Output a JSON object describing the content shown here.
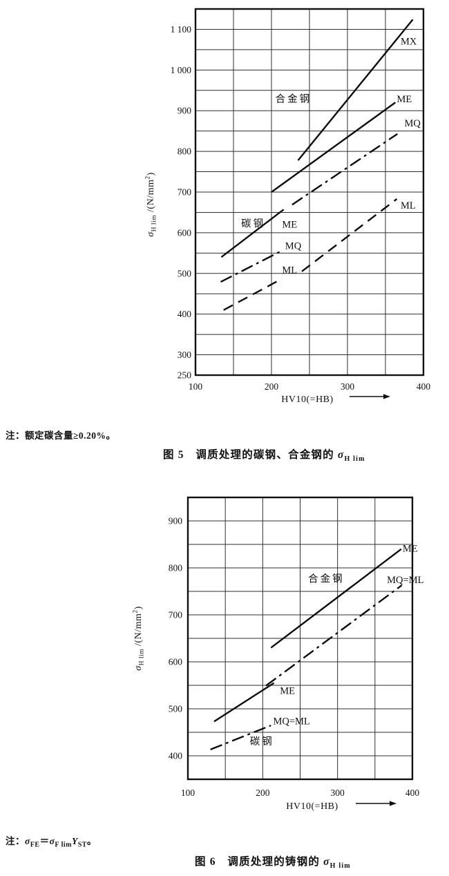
{
  "page": {
    "background": "#ffffff",
    "ink": "#101010"
  },
  "notes": {
    "fig5": [
      {
        "t": "注：额定碳含量≥0.20%。"
      }
    ],
    "fig6": [
      {
        "t": "注："
      },
      {
        "t": "σ",
        "i": 1
      },
      {
        "t": "FE",
        "sub": 1
      },
      {
        "t": "＝"
      },
      {
        "t": "σ",
        "i": 1
      },
      {
        "t": "F lim",
        "sub": 1
      },
      {
        "t": "Y",
        "i": 1
      },
      {
        "t": "ST",
        "sub": 1
      },
      {
        "t": "。"
      }
    ]
  },
  "captions": {
    "fig5": [
      {
        "t": "图 5　调质处理的碳钢、合金钢的 "
      },
      {
        "t": "σ",
        "i": 1
      },
      {
        "t": "H lim",
        "sub": 1
      }
    ],
    "fig6": [
      {
        "t": "图 6　调质处理的铸钢的 "
      },
      {
        "t": "σ",
        "i": 1
      },
      {
        "t": "H lim",
        "sub": 1
      }
    ]
  },
  "chart_data": [
    {
      "id": "fig5",
      "type": "line",
      "title": "图 5 调质处理的碳钢、合金钢的 σH lim",
      "xlabel": "HV10(=HB)",
      "ylabel": "σ H lim /(N/mm2)",
      "ylabel_parts": [
        {
          "t": "σ",
          "i": 1
        },
        {
          "t": "H lim",
          "sub": 1
        },
        {
          "t": " /(N/mm"
        },
        {
          "t": "2",
          "sup": 1
        },
        {
          "t": ")"
        }
      ],
      "xlim": [
        100,
        400
      ],
      "ylim": [
        250,
        1150
      ],
      "grid": "on",
      "grid_step_x": 50,
      "grid_step_y": 50,
      "x_ticks": [
        {
          "v": 100,
          "label": "100"
        },
        {
          "v": 200,
          "label": "200"
        },
        {
          "v": 300,
          "label": "300"
        },
        {
          "v": 400,
          "label": "400"
        }
      ],
      "y_ticks": [
        {
          "v": 1100,
          "label": "1 100"
        },
        {
          "v": 1000,
          "label": "1 000"
        },
        {
          "v": 900,
          "label": "900"
        },
        {
          "v": 800,
          "label": "800"
        },
        {
          "v": 700,
          "label": "700"
        },
        {
          "v": 600,
          "label": "600"
        },
        {
          "v": 500,
          "label": "500"
        },
        {
          "v": 400,
          "label": "400"
        },
        {
          "v": 300,
          "label": "300"
        },
        {
          "v": 250,
          "label": "250"
        }
      ],
      "series": [
        {
          "name": "MX",
          "group": "合金钢",
          "style": "solid",
          "points": [
            [
              235,
              778
            ],
            [
              386,
              1124
            ]
          ]
        },
        {
          "name": "ME",
          "group": "合金钢",
          "style": "solid",
          "points": [
            [
              200,
              700
            ],
            [
              363,
              920
            ]
          ]
        },
        {
          "name": "MQ",
          "group": "合金钢",
          "style": "dashdot",
          "points": [
            [
              228,
              670
            ],
            [
              365,
              842
            ]
          ]
        },
        {
          "name": "ML",
          "group": "合金钢",
          "style": "dashed",
          "points": [
            [
              240,
              505
            ],
            [
              365,
              683
            ]
          ]
        },
        {
          "name": "ME",
          "group": "碳钢",
          "style": "solid",
          "points": [
            [
              134,
              540
            ],
            [
              216,
              657
            ]
          ]
        },
        {
          "name": "MQ",
          "group": "碳钢",
          "style": "dashdot",
          "points": [
            [
              134,
              480
            ],
            [
              216,
              558
            ]
          ]
        },
        {
          "name": "ML",
          "group": "碳钢",
          "style": "dashed",
          "points": [
            [
              137,
              410
            ],
            [
              214,
              487
            ]
          ]
        }
      ],
      "annotations": [
        {
          "text": "合金钢",
          "x": 229,
          "y": 929,
          "anchor": "middle",
          "cn": 1
        },
        {
          "text": "碳钢",
          "x": 176,
          "y": 623,
          "anchor": "middle",
          "cn": 1
        },
        {
          "text": "MX",
          "x": 370,
          "y": 1071,
          "anchor": "start"
        },
        {
          "text": "ME",
          "x": 365,
          "y": 929,
          "anchor": "start"
        },
        {
          "text": "MQ",
          "x": 375,
          "y": 870,
          "anchor": "start"
        },
        {
          "text": "ML",
          "x": 370,
          "y": 668,
          "anchor": "start"
        },
        {
          "text": "ME",
          "x": 214,
          "y": 621,
          "anchor": "start"
        },
        {
          "text": "MQ",
          "x": 218,
          "y": 568,
          "anchor": "start"
        },
        {
          "text": "ML",
          "x": 214,
          "y": 509,
          "anchor": "start"
        }
      ]
    },
    {
      "id": "fig6",
      "type": "line",
      "title": "图 6 调质处理的铸钢的 σH lim",
      "xlabel": "HV10(=HB)",
      "ylabel": "σ H lim /(N/mm2)",
      "ylabel_parts": [
        {
          "t": "σ",
          "i": 1
        },
        {
          "t": "H lim",
          "sub": 1
        },
        {
          "t": " /(N/mm"
        },
        {
          "t": "2",
          "sup": 1
        },
        {
          "t": ")"
        }
      ],
      "xlim": [
        100,
        400
      ],
      "ylim": [
        350,
        950
      ],
      "grid": "on",
      "grid_step_x": 50,
      "grid_step_y": 50,
      "x_ticks": [
        {
          "v": 100,
          "label": "100"
        },
        {
          "v": 200,
          "label": "200"
        },
        {
          "v": 300,
          "label": "300"
        },
        {
          "v": 400,
          "label": "400"
        }
      ],
      "y_ticks": [
        {
          "v": 900,
          "label": "900"
        },
        {
          "v": 800,
          "label": "800"
        },
        {
          "v": 700,
          "label": "700"
        },
        {
          "v": 600,
          "label": "600"
        },
        {
          "v": 500,
          "label": "500"
        },
        {
          "v": 400,
          "label": "400"
        }
      ],
      "series": [
        {
          "name": "ME",
          "group": "合金钢",
          "style": "solid",
          "points": [
            [
              211,
              630
            ],
            [
              385,
              840
            ]
          ]
        },
        {
          "name": "MQ=ML",
          "group": "合金钢",
          "style": "dashdot",
          "points": [
            [
              205,
              550
            ],
            [
              385,
              762
            ]
          ]
        },
        {
          "name": "ME",
          "group": "碳钢",
          "style": "solid",
          "points": [
            [
              135,
              473
            ],
            [
              215,
              555
            ]
          ]
        },
        {
          "name": "MQ=ML",
          "group": "碳钢",
          "style": "dashdot",
          "points": [
            [
              131,
              414
            ],
            [
              210,
              464
            ]
          ]
        }
      ],
      "annotations": [
        {
          "text": "合金钢",
          "x": 285,
          "y": 777,
          "anchor": "middle",
          "cn": 1
        },
        {
          "text": "碳钢",
          "x": 199,
          "y": 431,
          "anchor": "middle",
          "cn": 1
        },
        {
          "text": "ME",
          "x": 387,
          "y": 842,
          "anchor": "start"
        },
        {
          "text": "MQ=ML",
          "x": 366,
          "y": 775,
          "anchor": "start"
        },
        {
          "text": "ME",
          "x": 223,
          "y": 539,
          "anchor": "start"
        },
        {
          "text": "MQ=ML",
          "x": 214,
          "y": 474,
          "anchor": "start"
        }
      ]
    }
  ]
}
